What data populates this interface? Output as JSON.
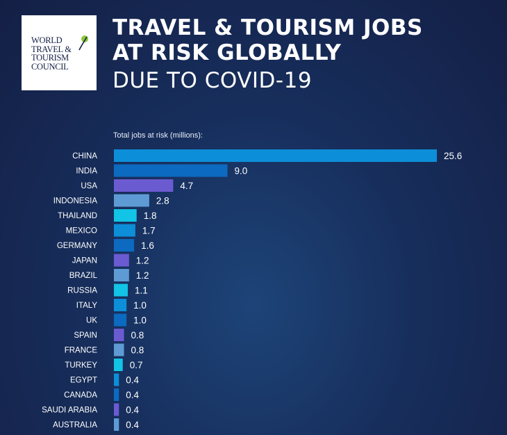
{
  "logo": {
    "lines": [
      "WORLD",
      "TRAVEL &",
      "TOURISM",
      "COUNCIL"
    ]
  },
  "header": {
    "title_line1": "TRAVEL & TOURISM JOBS",
    "title_line2": "AT RISK GLOBALLY",
    "subtitle": "DUE TO COVID-19"
  },
  "chart_data": {
    "type": "bar",
    "orientation": "horizontal",
    "ylabel": "Total jobs at risk (millions):",
    "categories": [
      "CHINA",
      "INDIA",
      "USA",
      "INDONESIA",
      "THAILAND",
      "MEXICO",
      "GERMANY",
      "JAPAN",
      "BRAZIL",
      "RUSSIA",
      "ITALY",
      "UK",
      "SPAIN",
      "FRANCE",
      "TURKEY",
      "EGYPT",
      "CANADA",
      "SAUDI ARABIA",
      "AUSTRALIA"
    ],
    "values": [
      25.6,
      9.0,
      4.7,
      2.8,
      1.8,
      1.7,
      1.6,
      1.2,
      1.2,
      1.1,
      1.0,
      1.0,
      0.8,
      0.8,
      0.7,
      0.4,
      0.4,
      0.4,
      0.4
    ],
    "value_labels": [
      "25.6",
      "9.0",
      "4.7",
      "2.8",
      "1.8",
      "1.7",
      "1.6",
      "1.2",
      "1.2",
      "1.1",
      "1.0",
      "1.0",
      "0.8",
      "0.8",
      "0.7",
      "0.4",
      "0.4",
      "0.4",
      "0.4"
    ],
    "colors": [
      "#0d8ed8",
      "#0c6ac0",
      "#6b5bd1",
      "#5e9bd4",
      "#12c4e6",
      "#0d8ed8",
      "#0c6ac0",
      "#6b5bd1",
      "#5e9bd4",
      "#12c4e6",
      "#0d8ed8",
      "#0c6ac0",
      "#6b5bd1",
      "#5e9bd4",
      "#12c4e6",
      "#0d8ed8",
      "#0c6ac0",
      "#6b5bd1",
      "#5e9bd4"
    ],
    "xlim": [
      0,
      25.6
    ],
    "grid": false,
    "legend": false
  }
}
